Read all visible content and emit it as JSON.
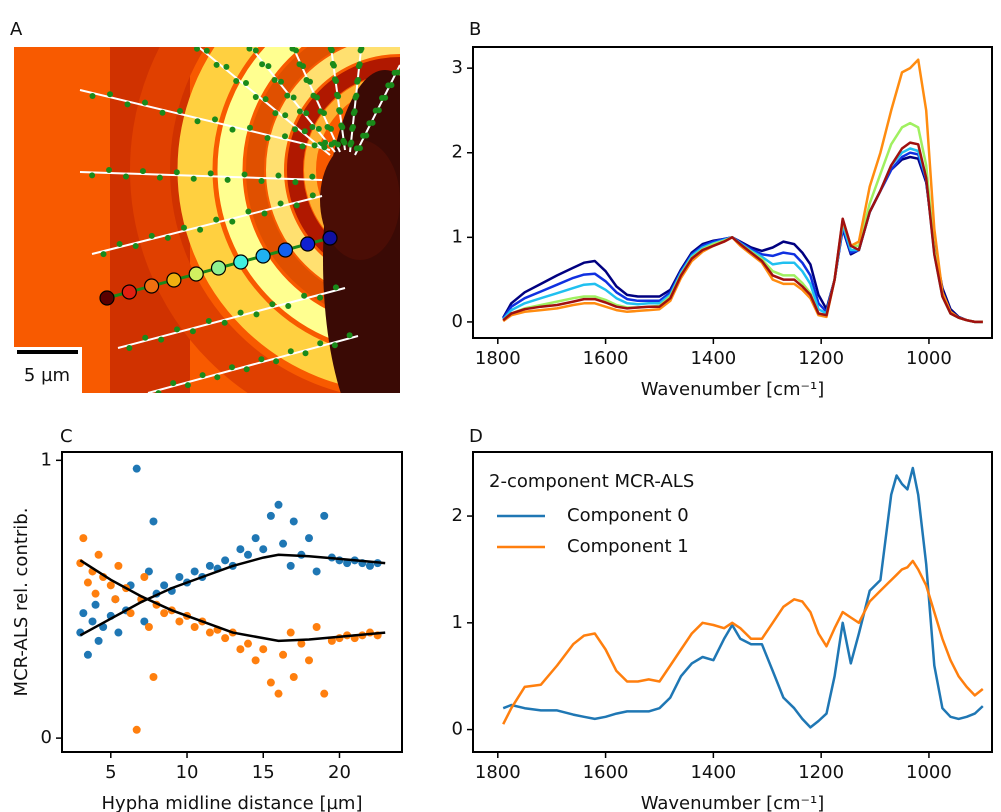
{
  "chart_data": [
    {
      "type": "image",
      "panel": "A",
      "scale_bar_label": "5 µm"
    },
    {
      "type": "line",
      "panel": "B",
      "xlabel": "Wavenumber [cm⁻¹]",
      "xlim": [
        1846,
        883
      ],
      "ylim": [
        -0.19,
        3.25
      ],
      "xticks": [
        1800,
        1600,
        1400,
        1200,
        1000
      ],
      "yticks": [
        0,
        1,
        2,
        3
      ],
      "x": [
        1790,
        1775,
        1750,
        1720,
        1690,
        1660,
        1640,
        1620,
        1600,
        1580,
        1560,
        1540,
        1520,
        1500,
        1480,
        1460,
        1440,
        1420,
        1400,
        1380,
        1365,
        1350,
        1330,
        1310,
        1290,
        1270,
        1250,
        1235,
        1220,
        1205,
        1190,
        1175,
        1160,
        1145,
        1130,
        1110,
        1090,
        1070,
        1050,
        1035,
        1020,
        1005,
        990,
        975,
        960,
        945,
        930,
        915,
        900
      ],
      "series": [
        {
          "color": "#000080",
          "values": [
            0.05,
            0.22,
            0.35,
            0.45,
            0.55,
            0.64,
            0.7,
            0.72,
            0.6,
            0.42,
            0.32,
            0.3,
            0.3,
            0.3,
            0.38,
            0.62,
            0.82,
            0.92,
            0.96,
            0.98,
            1.0,
            0.95,
            0.88,
            0.84,
            0.88,
            0.95,
            0.92,
            0.82,
            0.68,
            0.32,
            0.15,
            0.5,
            1.1,
            0.8,
            0.85,
            1.3,
            1.55,
            1.8,
            1.92,
            1.95,
            1.93,
            1.65,
            0.9,
            0.4,
            0.15,
            0.06,
            0.02,
            0.0,
            0.0
          ]
        },
        {
          "color": "#1030e0",
          "values": [
            0.04,
            0.18,
            0.28,
            0.36,
            0.44,
            0.52,
            0.56,
            0.57,
            0.48,
            0.35,
            0.27,
            0.25,
            0.25,
            0.25,
            0.35,
            0.6,
            0.8,
            0.9,
            0.95,
            0.98,
            1.0,
            0.94,
            0.86,
            0.8,
            0.78,
            0.82,
            0.8,
            0.7,
            0.55,
            0.22,
            0.12,
            0.5,
            1.12,
            0.82,
            0.85,
            1.3,
            1.55,
            1.8,
            1.95,
            2.0,
            1.98,
            1.68,
            0.85,
            0.35,
            0.12,
            0.05,
            0.02,
            0.0,
            0.0
          ]
        },
        {
          "color": "#20c0f0",
          "values": [
            0.03,
            0.14,
            0.22,
            0.28,
            0.34,
            0.4,
            0.44,
            0.45,
            0.38,
            0.28,
            0.22,
            0.21,
            0.22,
            0.22,
            0.32,
            0.58,
            0.78,
            0.88,
            0.93,
            0.97,
            1.0,
            0.93,
            0.84,
            0.77,
            0.68,
            0.7,
            0.7,
            0.6,
            0.45,
            0.15,
            0.1,
            0.5,
            1.15,
            0.85,
            0.85,
            1.3,
            1.55,
            1.85,
            2.0,
            2.05,
            2.02,
            1.7,
            0.8,
            0.3,
            0.1,
            0.05,
            0.02,
            0.0,
            0.0
          ]
        },
        {
          "color": "#a0f060",
          "values": [
            0.02,
            0.1,
            0.16,
            0.2,
            0.24,
            0.28,
            0.3,
            0.3,
            0.26,
            0.2,
            0.17,
            0.17,
            0.18,
            0.19,
            0.3,
            0.56,
            0.76,
            0.86,
            0.92,
            0.96,
            1.0,
            0.92,
            0.83,
            0.74,
            0.6,
            0.55,
            0.55,
            0.46,
            0.34,
            0.1,
            0.08,
            0.5,
            1.2,
            0.9,
            0.9,
            1.4,
            1.75,
            2.1,
            2.3,
            2.35,
            2.3,
            1.85,
            0.85,
            0.3,
            0.1,
            0.05,
            0.02,
            0.0,
            0.0
          ]
        },
        {
          "color": "#ff8c10",
          "values": [
            0.01,
            0.08,
            0.12,
            0.14,
            0.16,
            0.2,
            0.22,
            0.22,
            0.18,
            0.14,
            0.12,
            0.13,
            0.14,
            0.15,
            0.25,
            0.52,
            0.72,
            0.83,
            0.9,
            0.95,
            1.0,
            0.9,
            0.8,
            0.7,
            0.5,
            0.45,
            0.45,
            0.38,
            0.28,
            0.08,
            0.06,
            0.5,
            1.2,
            0.9,
            0.95,
            1.6,
            2.0,
            2.5,
            2.95,
            3.0,
            3.1,
            2.5,
            1.1,
            0.35,
            0.12,
            0.05,
            0.02,
            0.0,
            0.0
          ]
        },
        {
          "color": "#a01010",
          "values": [
            0.02,
            0.1,
            0.15,
            0.18,
            0.2,
            0.24,
            0.27,
            0.27,
            0.23,
            0.18,
            0.16,
            0.17,
            0.18,
            0.18,
            0.28,
            0.55,
            0.75,
            0.85,
            0.9,
            0.95,
            1.0,
            0.92,
            0.82,
            0.72,
            0.55,
            0.5,
            0.5,
            0.42,
            0.32,
            0.1,
            0.08,
            0.5,
            1.22,
            0.9,
            0.85,
            1.3,
            1.55,
            1.85,
            2.05,
            2.12,
            2.1,
            1.7,
            0.8,
            0.3,
            0.1,
            0.05,
            0.02,
            0.0,
            0.0
          ]
        }
      ]
    },
    {
      "type": "scatter",
      "panel": "C",
      "xlabel": "Hypha midline distance [µm]",
      "ylabel": "MCR-ALS rel. contrib.",
      "xlim": [
        1.8,
        24.1
      ],
      "ylim": [
        -0.05,
        1.03
      ],
      "xticks": [
        5,
        10,
        15,
        20
      ],
      "yticks": [
        0,
        1
      ],
      "series": [
        {
          "color": "#1f77b4",
          "x": [
            3,
            3.2,
            3.5,
            3.8,
            4,
            4.2,
            4.5,
            5,
            5.3,
            5.5,
            6,
            6.3,
            6.7,
            7,
            7.2,
            7.5,
            7.8,
            8,
            8.5,
            9,
            9.5,
            10,
            10.5,
            11,
            11.5,
            12,
            12.5,
            13,
            13.5,
            14,
            14.5,
            15,
            15.5,
            16,
            16.3,
            16.8,
            17,
            17.5,
            18,
            18.5,
            19,
            19.5,
            20,
            20.5,
            21,
            21.5,
            22,
            22.5
          ],
          "values": [
            0.38,
            0.45,
            0.3,
            0.42,
            0.48,
            0.35,
            0.4,
            0.44,
            0.5,
            0.38,
            0.46,
            0.55,
            0.97,
            0.5,
            0.42,
            0.6,
            0.78,
            0.52,
            0.55,
            0.53,
            0.58,
            0.56,
            0.6,
            0.58,
            0.62,
            0.61,
            0.64,
            0.62,
            0.68,
            0.66,
            0.72,
            0.68,
            0.8,
            0.84,
            0.7,
            0.62,
            0.78,
            0.66,
            0.72,
            0.6,
            0.8,
            0.65,
            0.64,
            0.63,
            0.64,
            0.63,
            0.62,
            0.63
          ]
        },
        {
          "color": "#ff7f0e",
          "x": [
            3,
            3.2,
            3.5,
            3.8,
            4,
            4.2,
            4.5,
            5,
            5.3,
            5.5,
            6,
            6.3,
            6.7,
            7,
            7.2,
            7.5,
            7.8,
            8,
            8.5,
            9,
            9.5,
            10,
            10.5,
            11,
            11.5,
            12,
            12.5,
            13,
            13.5,
            14,
            14.5,
            15,
            15.5,
            16,
            16.3,
            16.8,
            17,
            17.5,
            18,
            18.5,
            19,
            19.5,
            20,
            20.5,
            21,
            21.5,
            22,
            22.5
          ],
          "values": [
            0.63,
            0.72,
            0.56,
            0.6,
            0.52,
            0.66,
            0.58,
            0.55,
            0.5,
            0.62,
            0.54,
            0.45,
            0.03,
            0.5,
            0.58,
            0.4,
            0.22,
            0.48,
            0.45,
            0.46,
            0.42,
            0.44,
            0.4,
            0.42,
            0.38,
            0.39,
            0.36,
            0.38,
            0.32,
            0.34,
            0.28,
            0.32,
            0.2,
            0.16,
            0.3,
            0.38,
            0.22,
            0.34,
            0.28,
            0.4,
            0.16,
            0.35,
            0.36,
            0.37,
            0.36,
            0.37,
            0.38,
            0.37
          ]
        }
      ],
      "fit_lines": [
        {
          "color": "#000000",
          "x": [
            3,
            5,
            7,
            9,
            11,
            13,
            15,
            16,
            18,
            20,
            23
          ],
          "values": [
            0.37,
            0.43,
            0.49,
            0.54,
            0.58,
            0.62,
            0.65,
            0.66,
            0.655,
            0.645,
            0.63
          ]
        },
        {
          "color": "#000000",
          "x": [
            3,
            5,
            7,
            9,
            11,
            13,
            15,
            16,
            18,
            20,
            23
          ],
          "values": [
            0.64,
            0.57,
            0.51,
            0.46,
            0.42,
            0.38,
            0.36,
            0.35,
            0.355,
            0.365,
            0.38
          ]
        }
      ]
    },
    {
      "type": "line",
      "panel": "D",
      "xlabel": "Wavenumber [cm⁻¹]",
      "legend_title": "2-component MCR-ALS",
      "legend": "upper left",
      "xlim": [
        1846,
        883
      ],
      "ylim": [
        -0.21,
        2.6
      ],
      "xticks": [
        1800,
        1600,
        1400,
        1200,
        1000
      ],
      "yticks": [
        0,
        1,
        2
      ],
      "x": [
        1790,
        1775,
        1750,
        1720,
        1690,
        1660,
        1640,
        1620,
        1600,
        1580,
        1560,
        1540,
        1520,
        1500,
        1480,
        1460,
        1440,
        1420,
        1400,
        1380,
        1365,
        1350,
        1330,
        1310,
        1290,
        1270,
        1250,
        1235,
        1220,
        1205,
        1190,
        1175,
        1160,
        1145,
        1130,
        1110,
        1090,
        1070,
        1060,
        1050,
        1040,
        1030,
        1020,
        1005,
        990,
        975,
        960,
        945,
        930,
        915,
        900
      ],
      "series": [
        {
          "name": "Component 0",
          "color": "#1f77b4",
          "values": [
            0.2,
            0.23,
            0.2,
            0.18,
            0.18,
            0.14,
            0.12,
            0.1,
            0.12,
            0.15,
            0.17,
            0.17,
            0.17,
            0.2,
            0.3,
            0.5,
            0.62,
            0.68,
            0.65,
            0.85,
            0.98,
            0.85,
            0.8,
            0.8,
            0.55,
            0.3,
            0.2,
            0.1,
            0.02,
            0.08,
            0.15,
            0.5,
            1.0,
            0.62,
            0.9,
            1.3,
            1.4,
            2.2,
            2.38,
            2.3,
            2.25,
            2.45,
            2.2,
            1.55,
            0.6,
            0.2,
            0.12,
            0.1,
            0.12,
            0.15,
            0.22
          ]
        },
        {
          "name": "Component 1",
          "color": "#ff7f0e",
          "values": [
            0.05,
            0.2,
            0.4,
            0.42,
            0.6,
            0.8,
            0.88,
            0.9,
            0.75,
            0.55,
            0.45,
            0.45,
            0.47,
            0.45,
            0.6,
            0.75,
            0.9,
            1.0,
            0.98,
            0.95,
            1.0,
            0.95,
            0.85,
            0.85,
            1.0,
            1.15,
            1.22,
            1.2,
            1.1,
            0.9,
            0.78,
            0.95,
            1.1,
            1.05,
            1.0,
            1.2,
            1.3,
            1.4,
            1.45,
            1.5,
            1.52,
            1.58,
            1.5,
            1.35,
            1.1,
            0.85,
            0.65,
            0.5,
            0.4,
            0.32,
            0.38
          ]
        }
      ]
    }
  ]
}
